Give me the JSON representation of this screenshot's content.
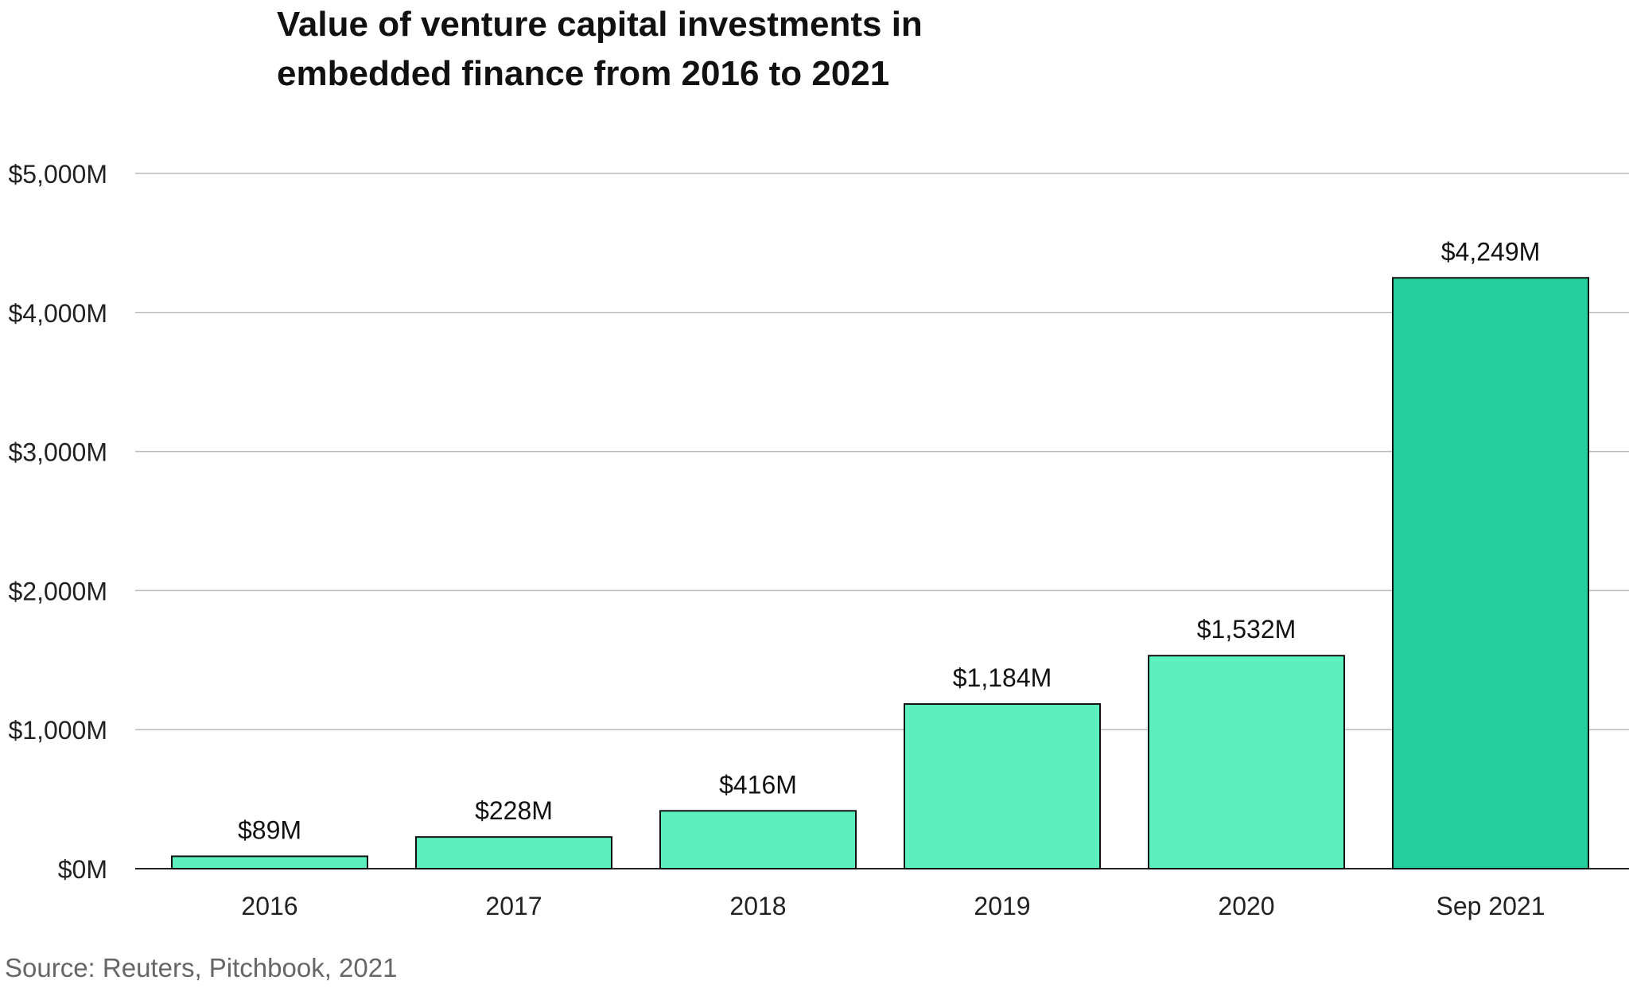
{
  "chart_data": {
    "type": "bar",
    "title_lines": [
      "Value of venture capital investments in",
      "embedded finance from 2016 to 2021"
    ],
    "categories": [
      "2016",
      "2017",
      "2018",
      "2019",
      "2020",
      "Sep 2021"
    ],
    "values": [
      89,
      228,
      416,
      1184,
      1532,
      4249
    ],
    "value_labels": [
      "$89M",
      "$228M",
      "$416M",
      "$1,184M",
      "$1,532M",
      "$4,249M"
    ],
    "yticks": [
      0,
      1000,
      2000,
      3000,
      4000,
      5000
    ],
    "ytick_labels": [
      "$0M",
      "$1,000M",
      "$2,000M",
      "$3,000M",
      "$4,000M",
      "$5,000M"
    ],
    "ylim": [
      0,
      5000
    ],
    "grid": true,
    "colors": {
      "bar": "#5cf0bf",
      "highlight_bar": "#24cf9b",
      "bar_stroke": "#111111",
      "grid": "#bbbbbb"
    },
    "highlight_index": 5
  },
  "source": "Source: Reuters, Pitchbook, 2021"
}
